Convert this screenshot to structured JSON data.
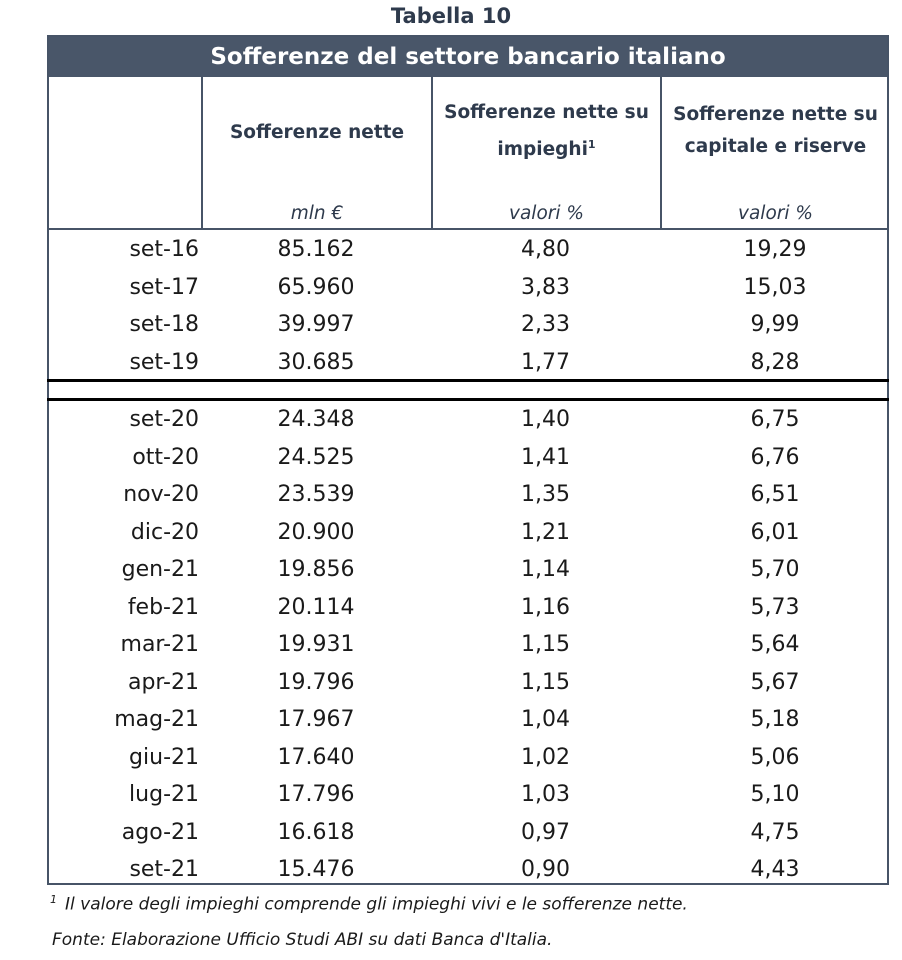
{
  "table_label": "Tabella 10",
  "title": "Sofferenze del settore bancario italiano",
  "columns": [
    {
      "title_line1": "",
      "title_line2": "",
      "unit": ""
    },
    {
      "title_line1": "Sofferenze nette",
      "title_line2": "",
      "unit": "mln €"
    },
    {
      "title_line1": "Sofferenze nette su",
      "title_line2": "impieghi",
      "sup": "1",
      "unit": "valori %"
    },
    {
      "title_line1": "Sofferenze nette su",
      "title_line2": "capitale e riserve",
      "unit": "valori %"
    }
  ],
  "rows_group1": [
    [
      "set-16",
      "85.162",
      "4,80",
      "19,29"
    ],
    [
      "set-17",
      "65.960",
      "3,83",
      "15,03"
    ],
    [
      "set-18",
      "39.997",
      "2,33",
      "9,99"
    ],
    [
      "set-19",
      "30.685",
      "1,77",
      "8,28"
    ]
  ],
  "rows_group2": [
    [
      "set-20",
      "24.348",
      "1,40",
      "6,75"
    ],
    [
      "ott-20",
      "24.525",
      "1,41",
      "6,76"
    ],
    [
      "nov-20",
      "23.539",
      "1,35",
      "6,51"
    ],
    [
      "dic-20",
      "20.900",
      "1,21",
      "6,01"
    ],
    [
      "gen-21",
      "19.856",
      "1,14",
      "5,70"
    ],
    [
      "feb-21",
      "20.114",
      "1,16",
      "5,73"
    ],
    [
      "mar-21",
      "19.931",
      "1,15",
      "5,64"
    ],
    [
      "apr-21",
      "19.796",
      "1,15",
      "5,67"
    ],
    [
      "mag-21",
      "17.967",
      "1,04",
      "5,18"
    ],
    [
      "giu-21",
      "17.640",
      "1,02",
      "5,06"
    ],
    [
      "lug-21",
      "17.796",
      "1,03",
      "5,10"
    ],
    [
      "ago-21",
      "16.618",
      "0,97",
      "4,75"
    ],
    [
      "set-21",
      "15.476",
      "0,90",
      "4,43"
    ]
  ],
  "footnote": {
    "marker": "1",
    "text": "Il valore degli impieghi comprende gli impieghi vivi e le sofferenze nette."
  },
  "source": "Fonte: Elaborazione Ufficio Studi ABI su dati Banca d'Italia."
}
